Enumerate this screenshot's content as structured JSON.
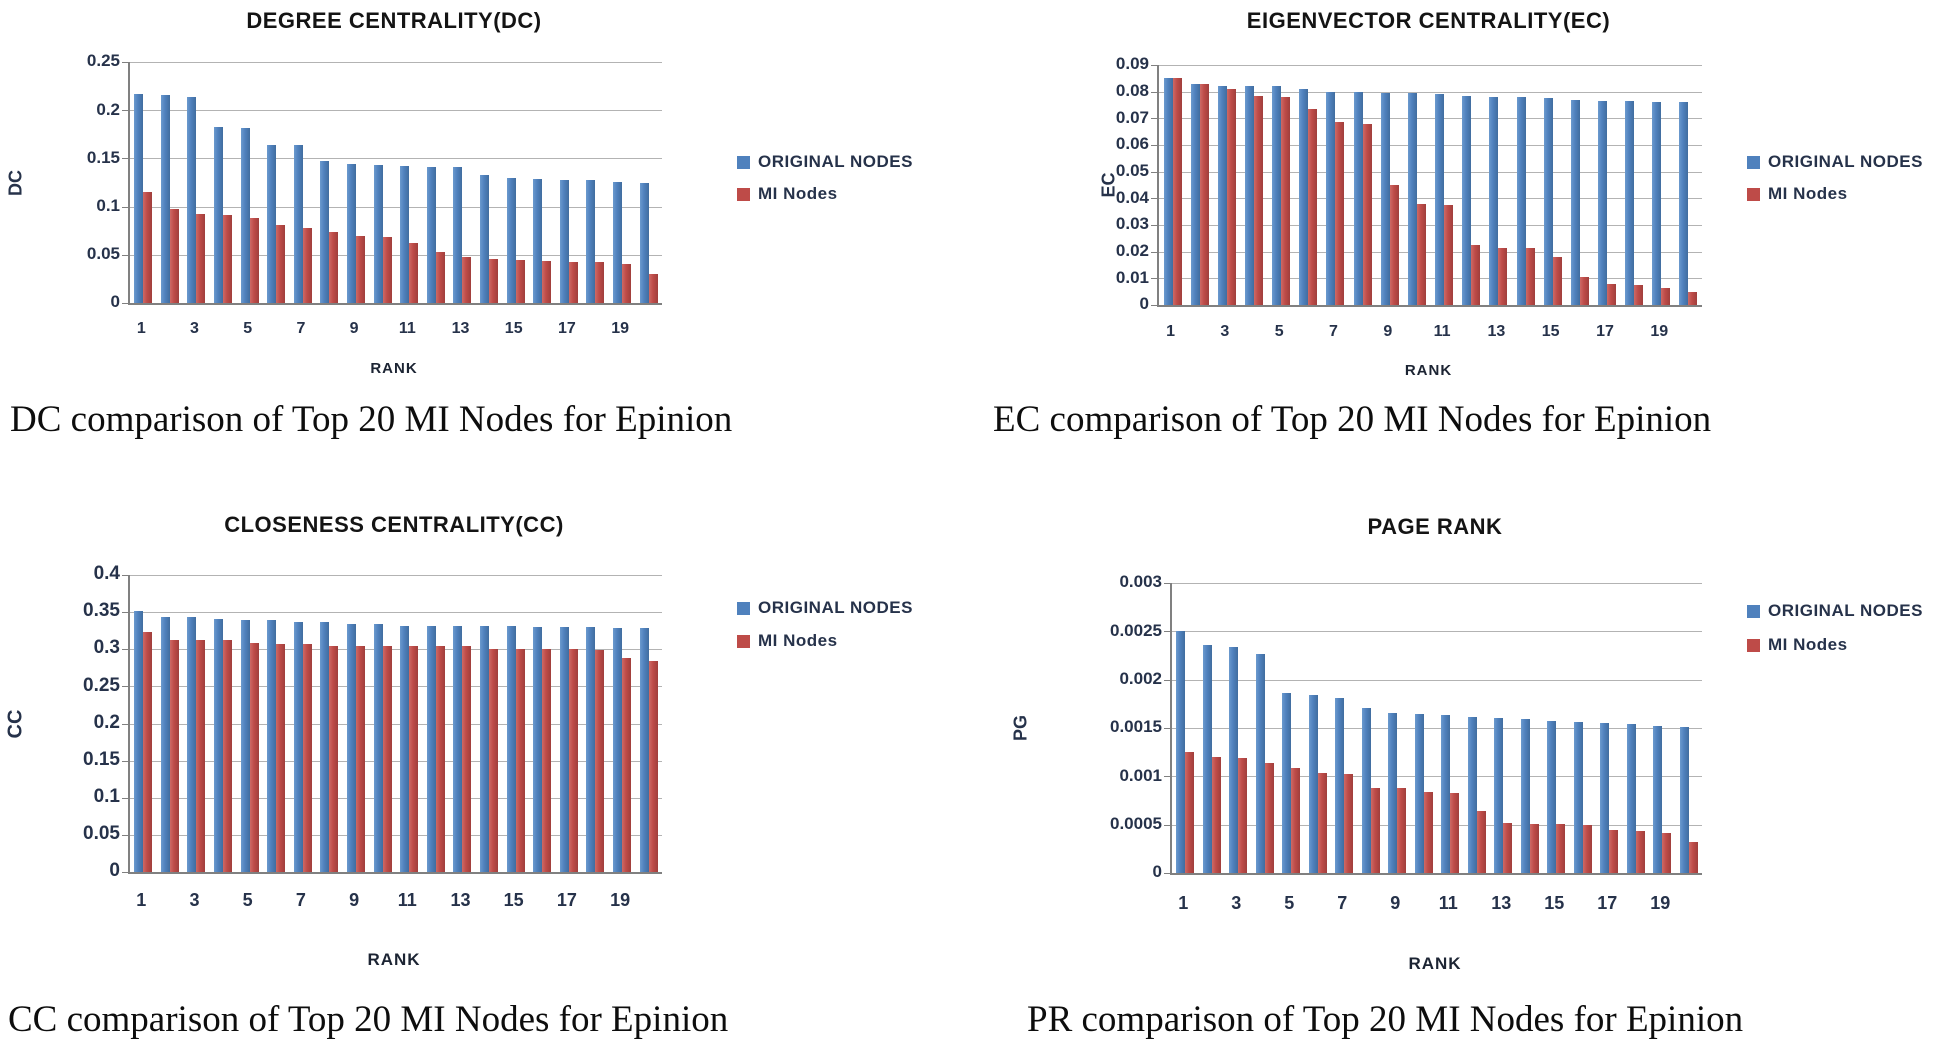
{
  "legend": {
    "original": "ORIGINAL NODES",
    "mi": "MI Nodes"
  },
  "colors": {
    "original_series": "#4F81BD",
    "mi_series": "#BE4B48",
    "gridline": "#b3b3b3",
    "axis_line": "#808080",
    "tick_text": "#26324a",
    "title_text": "#141414"
  },
  "x_tick_labels": [
    "1",
    "3",
    "5",
    "7",
    "9",
    "11",
    "13",
    "15",
    "17",
    "19"
  ],
  "chart_data": [
    {
      "id": "dc",
      "type": "bar",
      "title": "DEGREE CENTRALITY(DC)",
      "y_axis_label": "DC",
      "x_axis_label": "RANK",
      "caption": "DC comparison of Top 20 MI Nodes for Epinion",
      "ymax": 0.25,
      "ylim": [
        0,
        0.25
      ],
      "grid": true,
      "legend_position": "right",
      "y_tick_labels": [
        "0.25",
        "0.2",
        "0.15",
        "0.1",
        "0.05",
        "0"
      ],
      "categories": [
        1,
        2,
        3,
        4,
        5,
        6,
        7,
        8,
        9,
        10,
        11,
        12,
        13,
        14,
        15,
        16,
        17,
        18,
        19,
        20
      ],
      "series": [
        {
          "name": "ORIGINAL NODES",
          "values": [
            0.217,
            0.216,
            0.214,
            0.183,
            0.182,
            0.164,
            0.164,
            0.147,
            0.144,
            0.143,
            0.142,
            0.141,
            0.141,
            0.133,
            0.13,
            0.129,
            0.128,
            0.128,
            0.126,
            0.125
          ]
        },
        {
          "name": "MI Nodes",
          "values": [
            0.115,
            0.098,
            0.092,
            0.091,
            0.088,
            0.081,
            0.078,
            0.074,
            0.069,
            0.068,
            0.062,
            0.053,
            0.048,
            0.046,
            0.045,
            0.044,
            0.043,
            0.043,
            0.04,
            0.03
          ]
        }
      ]
    },
    {
      "id": "ec",
      "type": "bar",
      "title": "EIGENVECTOR CENTRALITY(EC)",
      "y_axis_label": "EC",
      "x_axis_label": "RANK",
      "caption": "EC comparison of Top 20 MI Nodes for Epinion",
      "ymax": 0.09,
      "ylim": [
        0,
        0.09
      ],
      "grid": true,
      "legend_position": "right",
      "y_tick_labels": [
        "0.09",
        "0.08",
        "0.07",
        "0.06",
        "0.05",
        "0.04",
        "0.03",
        "0.02",
        "0.01",
        "0"
      ],
      "categories": [
        1,
        2,
        3,
        4,
        5,
        6,
        7,
        8,
        9,
        10,
        11,
        12,
        13,
        14,
        15,
        16,
        17,
        18,
        19,
        20
      ],
      "series": [
        {
          "name": "ORIGINAL NODES",
          "values": [
            0.085,
            0.083,
            0.082,
            0.082,
            0.082,
            0.081,
            0.08,
            0.08,
            0.0795,
            0.0795,
            0.079,
            0.0785,
            0.078,
            0.078,
            0.0775,
            0.077,
            0.0765,
            0.0765,
            0.076,
            0.076
          ]
        },
        {
          "name": "MI Nodes",
          "values": [
            0.085,
            0.083,
            0.081,
            0.0785,
            0.078,
            0.0735,
            0.0685,
            0.068,
            0.045,
            0.038,
            0.0375,
            0.0225,
            0.0215,
            0.0215,
            0.018,
            0.0105,
            0.008,
            0.0075,
            0.0065,
            0.005
          ]
        }
      ]
    },
    {
      "id": "cc",
      "type": "bar",
      "title": "CLOSENESS CENTRALITY(CC)",
      "y_axis_label": "CC",
      "x_axis_label": "RANK",
      "caption": "CC comparison of Top 20 MI Nodes for Epinion",
      "ymax": 0.4,
      "ylim": [
        0,
        0.4
      ],
      "grid": true,
      "legend_position": "right",
      "y_tick_labels": [
        "0.4",
        "0.35",
        "0.3",
        "0.25",
        "0.2",
        "0.15",
        "0.1",
        "0.05",
        "0"
      ],
      "categories": [
        1,
        2,
        3,
        4,
        5,
        6,
        7,
        8,
        9,
        10,
        11,
        12,
        13,
        14,
        15,
        16,
        17,
        18,
        19,
        20
      ],
      "series": [
        {
          "name": "ORIGINAL NODES",
          "values": [
            0.351,
            0.344,
            0.344,
            0.341,
            0.339,
            0.339,
            0.337,
            0.337,
            0.334,
            0.334,
            0.332,
            0.332,
            0.332,
            0.332,
            0.332,
            0.33,
            0.33,
            0.33,
            0.329,
            0.329
          ]
        },
        {
          "name": "MI Nodes",
          "values": [
            0.323,
            0.313,
            0.313,
            0.313,
            0.309,
            0.307,
            0.307,
            0.305,
            0.305,
            0.304,
            0.304,
            0.304,
            0.304,
            0.301,
            0.301,
            0.301,
            0.301,
            0.299,
            0.288,
            0.284
          ]
        }
      ]
    },
    {
      "id": "pr",
      "type": "bar",
      "title": "PAGE RANK",
      "y_axis_label": "PG",
      "x_axis_label": "RANK",
      "caption": "PR comparison of Top 20 MI Nodes for Epinion",
      "ymax": 0.003,
      "ylim": [
        0,
        0.003
      ],
      "grid": true,
      "legend_position": "right",
      "y_tick_labels": [
        "0.003",
        "0.0025",
        "0.002",
        "0.0015",
        "0.001",
        "0.0005",
        "0"
      ],
      "categories": [
        1,
        2,
        3,
        4,
        5,
        6,
        7,
        8,
        9,
        10,
        11,
        12,
        13,
        14,
        15,
        16,
        17,
        18,
        19,
        20
      ],
      "series": [
        {
          "name": "ORIGINAL NODES",
          "values": [
            0.0025,
            0.00236,
            0.00234,
            0.00227,
            0.00186,
            0.00184,
            0.00181,
            0.00171,
            0.00166,
            0.00165,
            0.00163,
            0.00161,
            0.0016,
            0.00159,
            0.00157,
            0.00156,
            0.00155,
            0.00154,
            0.00152,
            0.00151
          ]
        },
        {
          "name": "MI Nodes",
          "values": [
            0.00125,
            0.0012,
            0.00119,
            0.00114,
            0.00109,
            0.00103,
            0.00102,
            0.00088,
            0.00088,
            0.00084,
            0.00083,
            0.00064,
            0.00052,
            0.00051,
            0.00051,
            0.0005,
            0.00045,
            0.00043,
            0.00041,
            0.00032
          ]
        }
      ]
    }
  ]
}
